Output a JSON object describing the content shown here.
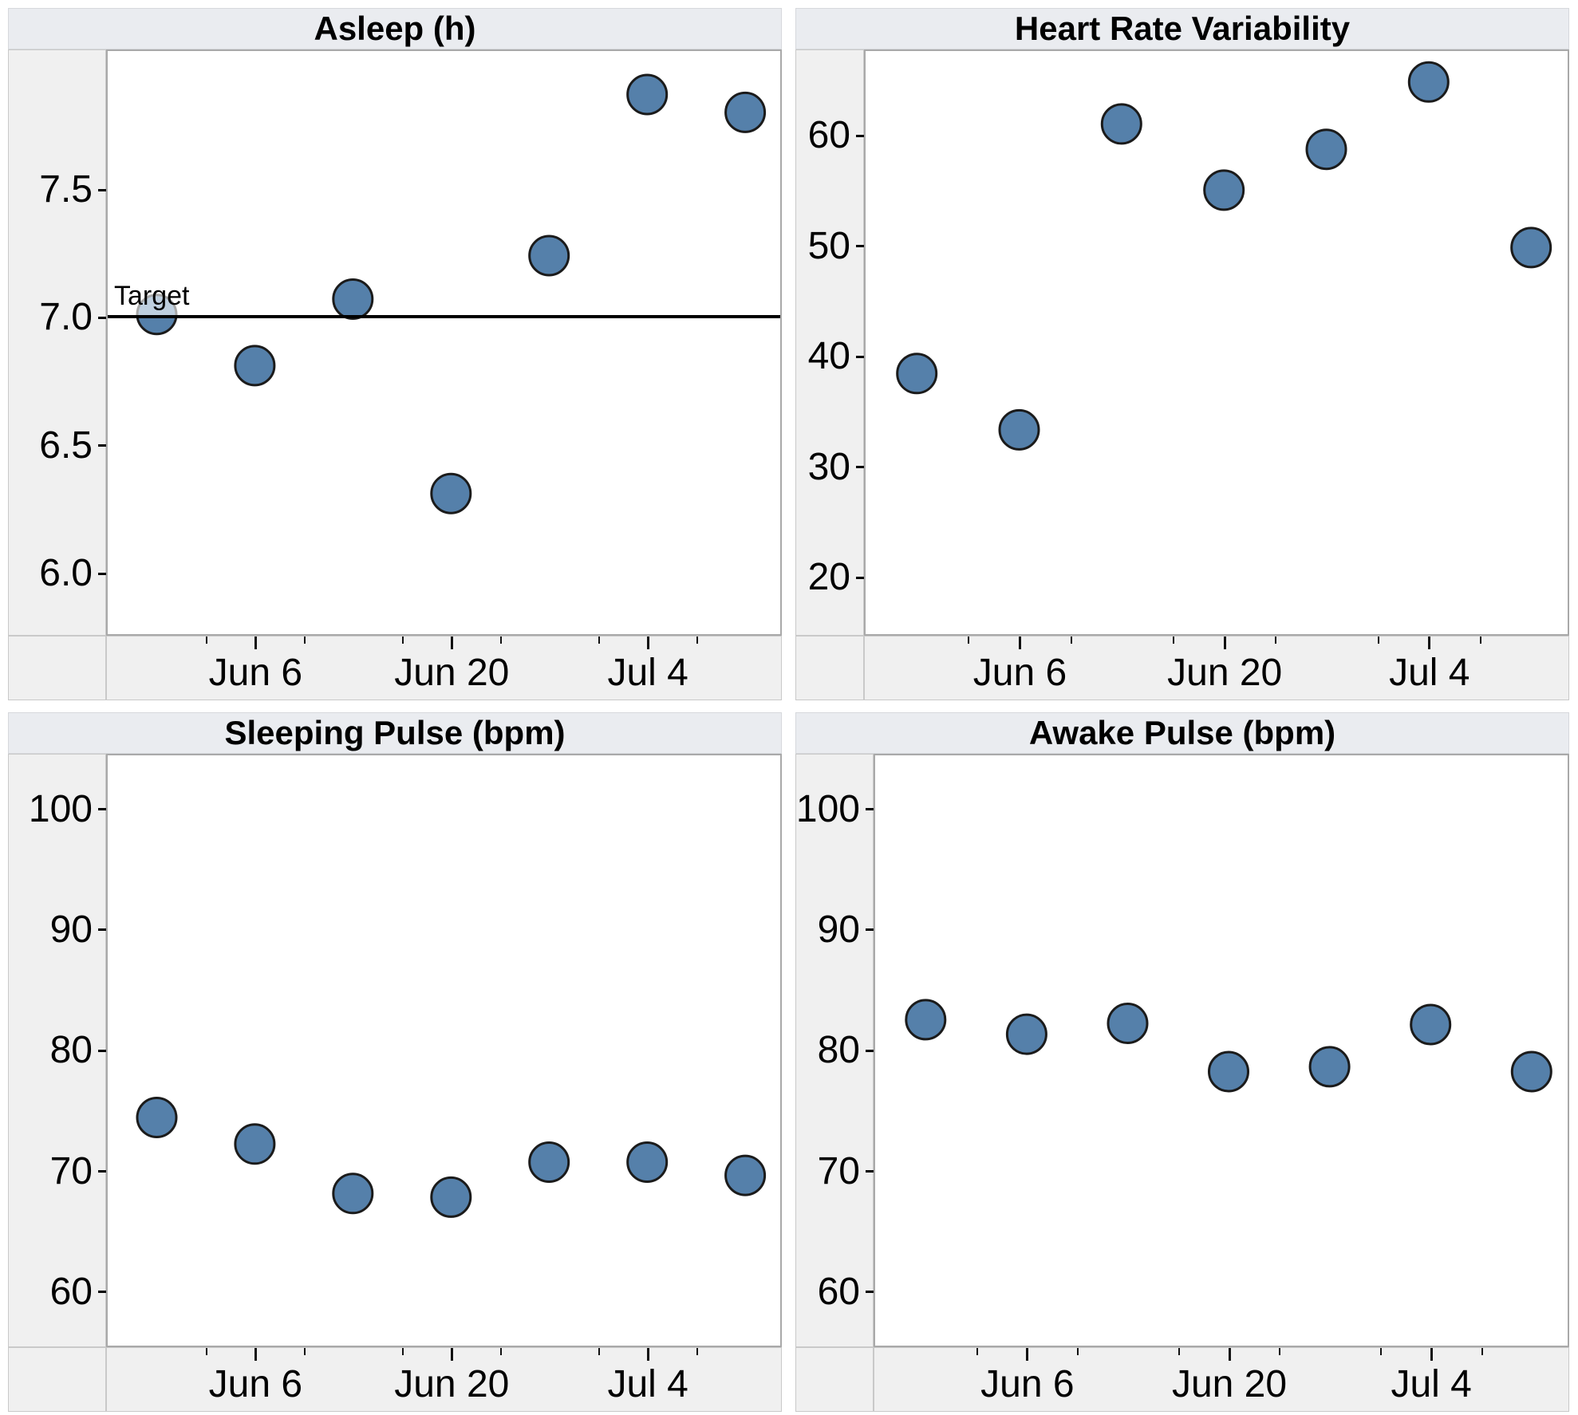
{
  "page": {
    "background": "#ffffff"
  },
  "marker": {
    "shape": "circle",
    "color": "#5580aa",
    "outline": "#1b1b1b"
  },
  "x_axis": {
    "tick_labels": [
      "Jun 6",
      "Jun 20",
      "Jul 4"
    ],
    "dates": [
      "May 30",
      "Jun 6",
      "Jun 13",
      "Jun 20",
      "Jun 27",
      "Jul 4",
      "Jul 11"
    ],
    "xlim_days": [
      0,
      48
    ],
    "point_days": [
      3.5,
      10.5,
      17.5,
      24.5,
      31.5,
      38.5,
      45.5
    ],
    "major_tick_days": [
      10.5,
      24.5,
      38.5
    ],
    "minor_tick_days": [
      7,
      14,
      21,
      28,
      35,
      42
    ]
  },
  "chart_data": [
    {
      "type": "scatter",
      "title": "Asleep (h)",
      "x": [
        "May 30",
        "Jun 6",
        "Jun 13",
        "Jun 20",
        "Jun 27",
        "Jul 4",
        "Jul 11"
      ],
      "values": [
        7.01,
        6.81,
        7.07,
        6.31,
        7.24,
        7.87,
        7.8
      ],
      "ylim": [
        5.76,
        8.04
      ],
      "yticks": [
        6.0,
        6.5,
        7.0,
        7.5
      ],
      "ytick_labels": [
        "6.0",
        "6.5",
        "7.0",
        "7.5"
      ],
      "xtick_labels": [
        "Jun 6",
        "Jun 20",
        "Jul 4"
      ],
      "ref_line": {
        "value": 7.0,
        "label": "Target"
      },
      "grid": false,
      "legend": false
    },
    {
      "type": "scatter",
      "title": "Heart Rate Variability",
      "x": [
        "May 30",
        "Jun 6",
        "Jun 13",
        "Jun 20",
        "Jun 27",
        "Jul 4",
        "Jul 11"
      ],
      "values": [
        38.4,
        33.3,
        61.0,
        55.0,
        58.7,
        64.8,
        49.8
      ],
      "ylim": [
        14.8,
        67.6
      ],
      "yticks": [
        20,
        30,
        40,
        50,
        60
      ],
      "ytick_labels": [
        "20",
        "30",
        "40",
        "50",
        "60"
      ],
      "xtick_labels": [
        "Jun 6",
        "Jun 20",
        "Jul 4"
      ],
      "grid": false,
      "legend": false
    },
    {
      "type": "scatter",
      "title": "Sleeping Pulse (bpm)",
      "x": [
        "May 30",
        "Jun 6",
        "Jun 13",
        "Jun 20",
        "Jun 27",
        "Jul 4",
        "Jul 11"
      ],
      "values": [
        74.4,
        72.2,
        68.1,
        67.8,
        70.7,
        70.7,
        69.6
      ],
      "ylim": [
        55.5,
        104.4
      ],
      "yticks": [
        60,
        70,
        80,
        90,
        100
      ],
      "ytick_labels": [
        "60",
        "70",
        "80",
        "90",
        "100"
      ],
      "xtick_labels": [
        "Jun 6",
        "Jun 20",
        "Jul 4"
      ],
      "grid": false,
      "legend": false
    },
    {
      "type": "scatter",
      "title": "Awake Pulse (bpm)",
      "x": [
        "May 30",
        "Jun 6",
        "Jun 13",
        "Jun 20",
        "Jun 27",
        "Jul 4",
        "Jul 11"
      ],
      "values": [
        82.5,
        81.3,
        82.2,
        78.2,
        78.6,
        82.1,
        78.2
      ],
      "ylim": [
        55.5,
        104.4
      ],
      "yticks": [
        60,
        70,
        80,
        90,
        100
      ],
      "ytick_labels": [
        "60",
        "70",
        "80",
        "90",
        "100"
      ],
      "xtick_labels": [
        "Jun 6",
        "Jun 20",
        "Jul 4"
      ],
      "grid": false,
      "legend": false
    }
  ]
}
